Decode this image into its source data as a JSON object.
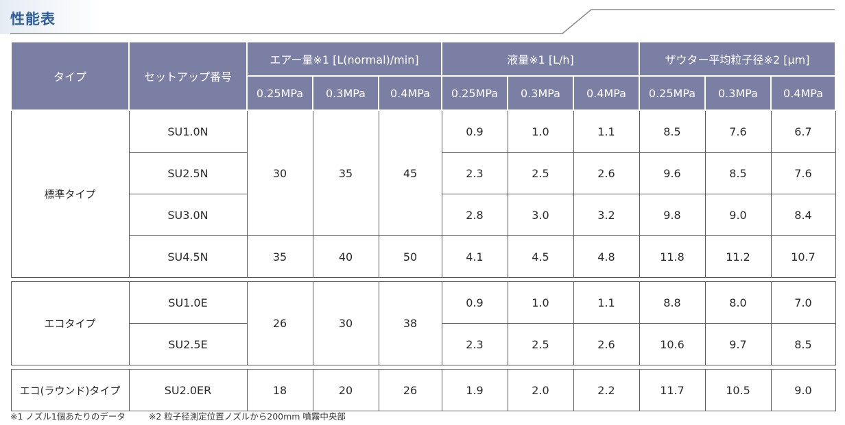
{
  "title": "性能表",
  "header": {
    "type_label": "タイプ",
    "setup_label": "セットアップ番号",
    "air_label": "エアー量※1 [L(normal)/min]",
    "liquid_label": "液量※1 [L/h]",
    "particle_label": "ザウター平均粒子径※2 [μm]",
    "pressures": [
      "0.25MPa",
      "0.3MPa",
      "0.4MPa"
    ]
  },
  "groups": [
    {
      "type": "標準タイプ",
      "air_blocks": [
        {
          "values": [
            "30",
            "35",
            "45"
          ]
        },
        {
          "values": [
            "35",
            "40",
            "50"
          ]
        }
      ],
      "rows": [
        {
          "setup": "SU1.0N",
          "liquid": [
            "0.9",
            "1.0",
            "1.1"
          ],
          "particle": [
            "8.5",
            "7.6",
            "6.7"
          ]
        },
        {
          "setup": "SU2.5N",
          "liquid": [
            "2.3",
            "2.5",
            "2.6"
          ],
          "particle": [
            "9.6",
            "8.5",
            "7.6"
          ]
        },
        {
          "setup": "SU3.0N",
          "liquid": [
            "2.8",
            "3.0",
            "3.2"
          ],
          "particle": [
            "9.8",
            "9.0",
            "8.4"
          ]
        },
        {
          "setup": "SU4.5N",
          "liquid": [
            "4.1",
            "4.5",
            "4.8"
          ],
          "particle": [
            "11.8",
            "11.2",
            "10.7"
          ]
        }
      ]
    },
    {
      "type": "エコタイプ",
      "air_blocks": [
        {
          "values": [
            "26",
            "30",
            "38"
          ]
        }
      ],
      "rows": [
        {
          "setup": "SU1.0E",
          "liquid": [
            "0.9",
            "1.0",
            "1.1"
          ],
          "particle": [
            "8.8",
            "8.0",
            "7.0"
          ]
        },
        {
          "setup": "SU2.5E",
          "liquid": [
            "2.3",
            "2.5",
            "2.6"
          ],
          "particle": [
            "10.6",
            "9.7",
            "8.5"
          ]
        }
      ]
    },
    {
      "type": "エコ(ラウンド)タイプ",
      "air_blocks": [
        {
          "values": [
            "18",
            "20",
            "26"
          ]
        }
      ],
      "rows": [
        {
          "setup": "SU2.0ER",
          "liquid": [
            "1.9",
            "2.0",
            "2.2"
          ],
          "particle": [
            "11.7",
            "10.5",
            "9.0"
          ]
        }
      ]
    }
  ],
  "footnotes": [
    "※1 ノズル1個あたりのデータ",
    "※2 粒子径測定位置ノズルから200mm 噴霧中央部"
  ],
  "colors": {
    "title": "#2e5f99",
    "header_bg": "#7a7fa3",
    "border": "#5a5a5a"
  }
}
